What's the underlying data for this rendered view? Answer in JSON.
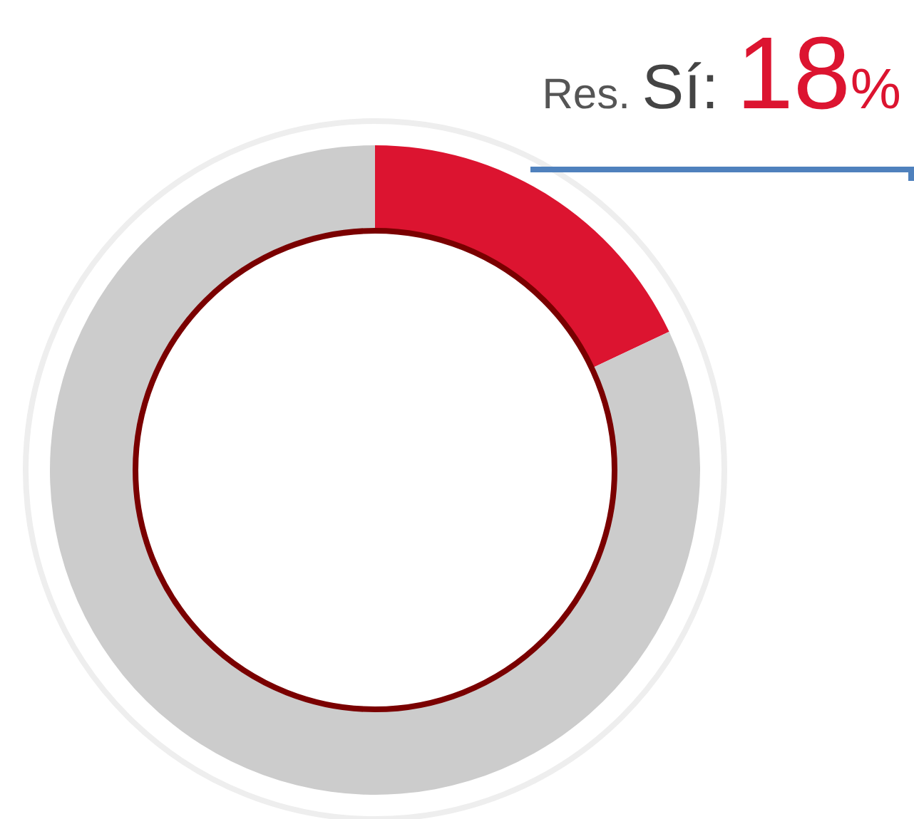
{
  "chart_data": {
    "type": "donut",
    "categories": [
      null,
      null
    ],
    "values": [
      18,
      82
    ],
    "colors": [
      "#dc1430",
      "#cccccc"
    ],
    "value_labels": [
      "Res. Sí: 18%",
      null
    ]
  }
}
